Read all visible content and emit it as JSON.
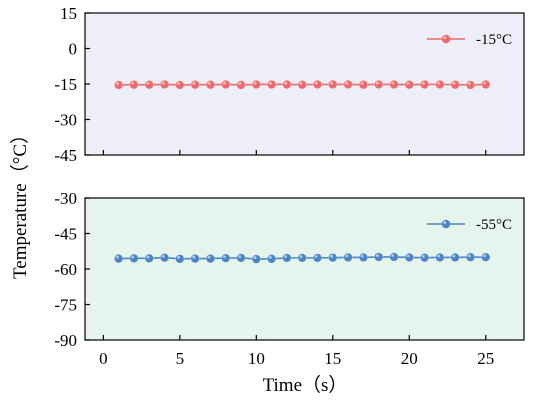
{
  "chart_data": [
    {
      "type": "line",
      "x": [
        1,
        2,
        3,
        4,
        5,
        6,
        7,
        8,
        9,
        10,
        11,
        12,
        13,
        14,
        15,
        16,
        17,
        18,
        19,
        20,
        21,
        22,
        23,
        24,
        25
      ],
      "series": [
        {
          "name": "-15°C",
          "color": "#ee6a6a",
          "values": [
            -15.4,
            -15.3,
            -15.3,
            -15.2,
            -15.4,
            -15.3,
            -15.3,
            -15.2,
            -15.4,
            -15.2,
            -15.2,
            -15.2,
            -15.3,
            -15.2,
            -15.2,
            -15.2,
            -15.3,
            -15.2,
            -15.2,
            -15.3,
            -15.2,
            -15.2,
            -15.3,
            -15.4,
            -15.2
          ]
        }
      ],
      "ylim": [
        -45,
        15
      ],
      "yticks": [
        15,
        0,
        -15,
        -30,
        -45
      ],
      "ytick_labels": [
        "15",
        "0",
        "-15",
        "-30",
        "-45"
      ],
      "background": "#eeeef8",
      "legend": "top-right"
    },
    {
      "type": "line",
      "x": [
        1,
        2,
        3,
        4,
        5,
        6,
        7,
        8,
        9,
        10,
        11,
        12,
        13,
        14,
        15,
        16,
        17,
        18,
        19,
        20,
        21,
        22,
        23,
        24,
        25
      ],
      "series": [
        {
          "name": "-55°C",
          "color": "#4a86c6",
          "values": [
            -55.6,
            -55.5,
            -55.5,
            -55.2,
            -55.7,
            -55.6,
            -55.6,
            -55.4,
            -55.3,
            -55.8,
            -55.7,
            -55.3,
            -55.3,
            -55.3,
            -55.2,
            -55.1,
            -55.1,
            -54.9,
            -54.9,
            -55.1,
            -55.2,
            -55.1,
            -55.1,
            -55.0,
            -55.0
          ]
        }
      ],
      "ylim": [
        -90,
        -30
      ],
      "yticks": [
        -30,
        -45,
        -60,
        -75,
        -90
      ],
      "ytick_labels": [
        "-30",
        "-45",
        "-60",
        "-75",
        "-90"
      ],
      "xlim": [
        -1.2,
        27.5
      ],
      "xticks": [
        0,
        5,
        10,
        15,
        20,
        25
      ],
      "xtick_labels": [
        "0",
        "5",
        "10",
        "15",
        "20",
        "25"
      ],
      "background": "#e5f4ec",
      "legend": "top-right"
    }
  ],
  "labels": {
    "ylabel": "Temperature（°C）",
    "xlabel": "Time（s）"
  }
}
